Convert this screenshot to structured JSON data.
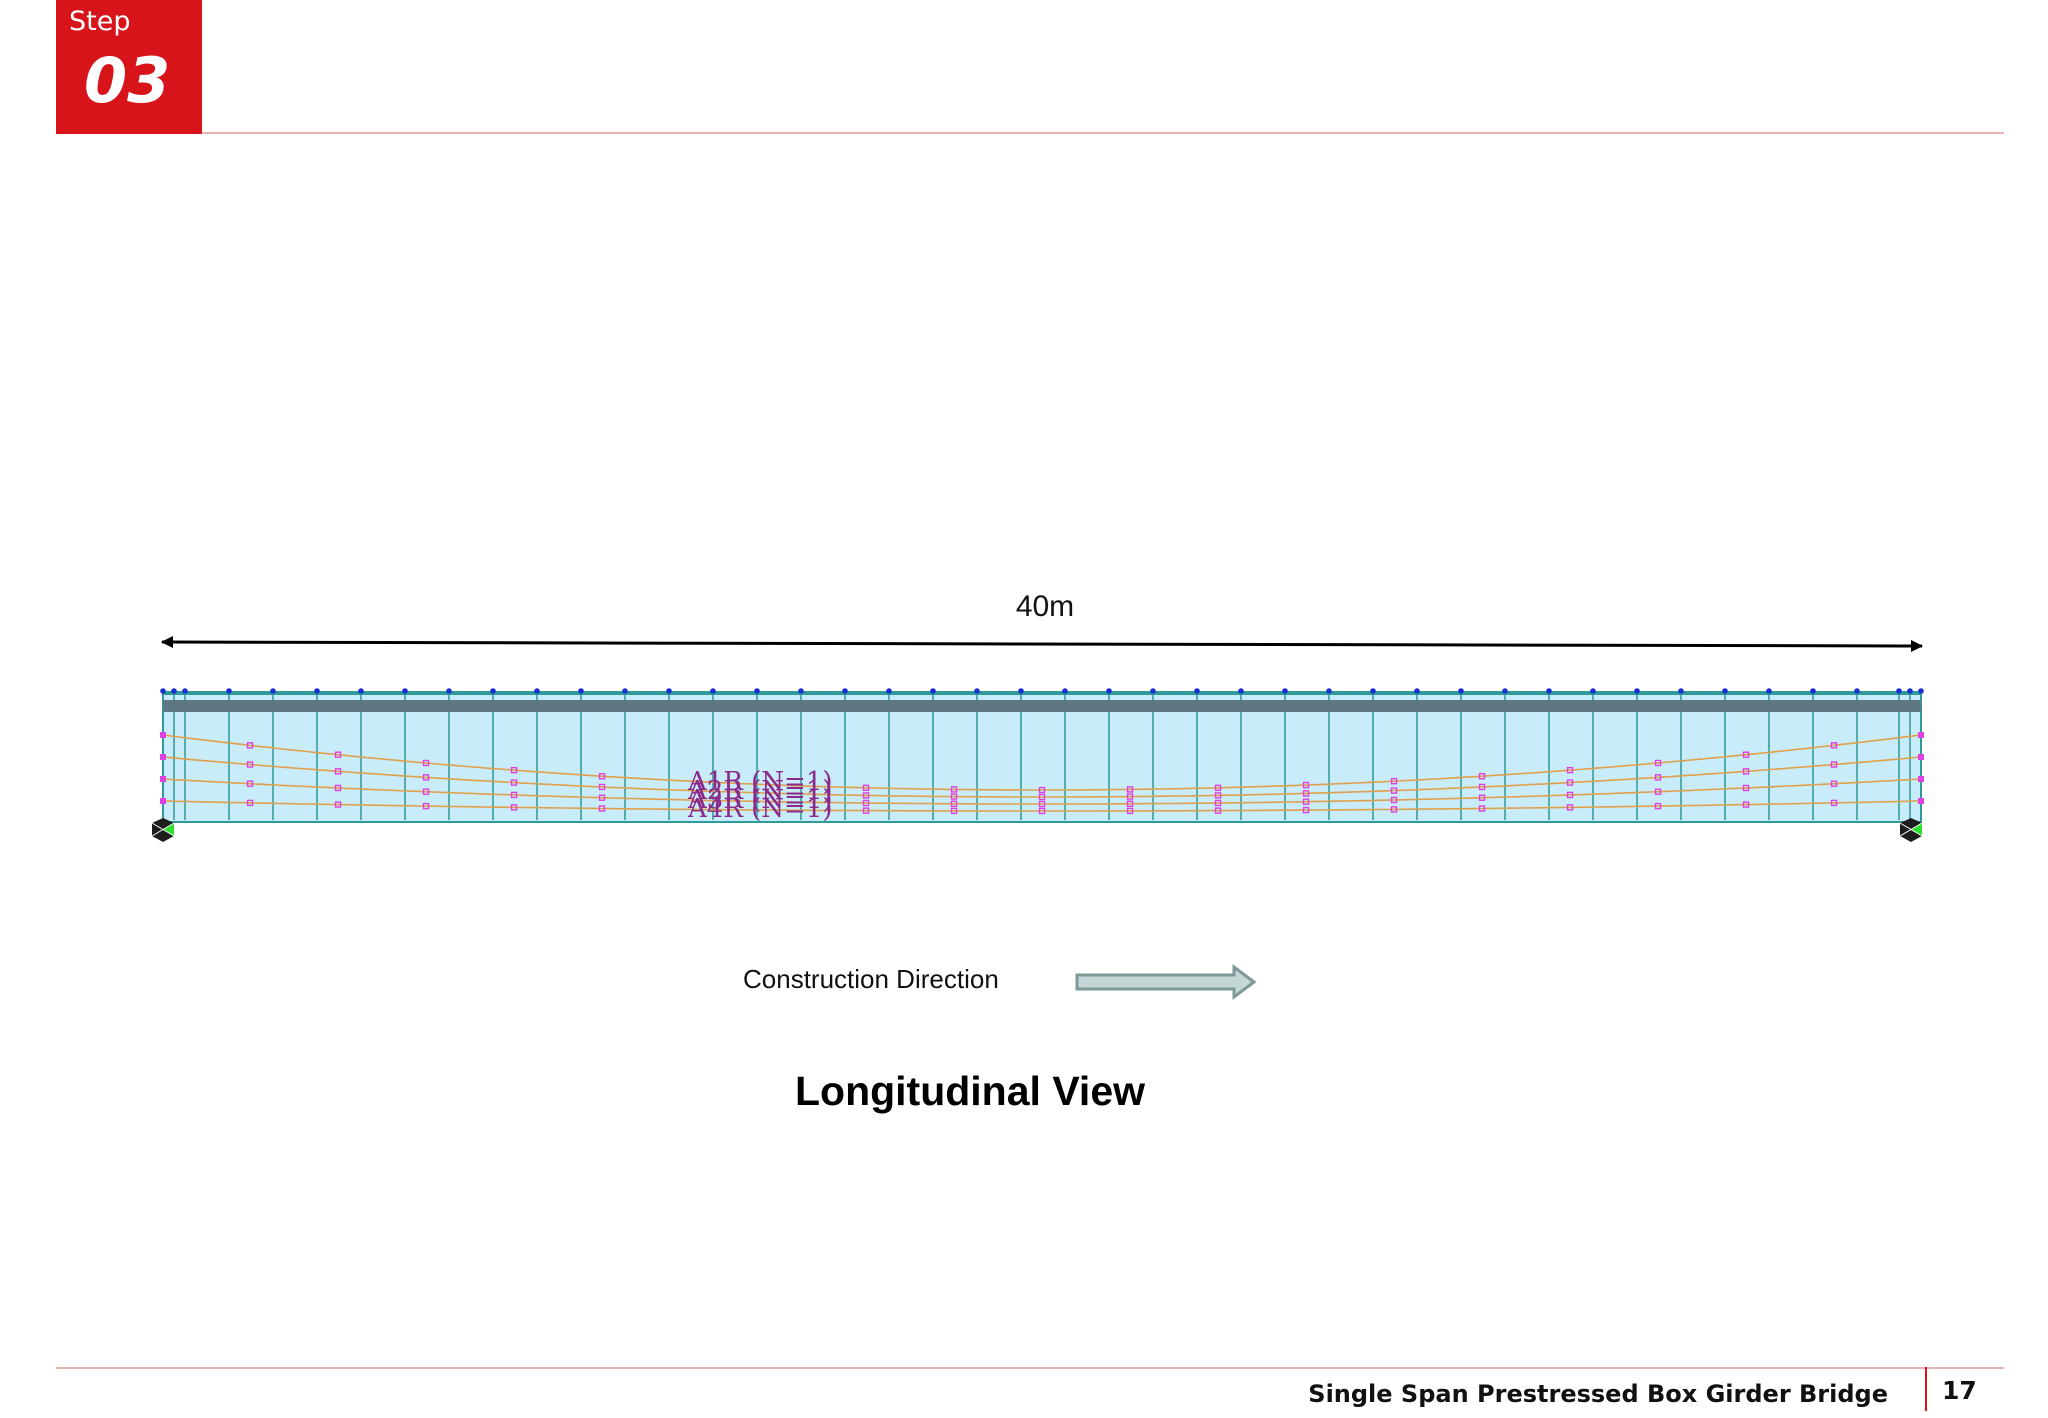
{
  "step": {
    "label": "Step",
    "number": "03"
  },
  "drawing": {
    "span_label": "40m",
    "tendon_labels": [
      "A1R (N=1)",
      "A2R (N=1)",
      "A3R (N=1)",
      "A4R (N=1)"
    ],
    "construction_label": "Construction Direction",
    "view_title": "Longitudinal View",
    "colors": {
      "girder_fill": "#c8ecfa",
      "segment_line": "#2e9a99",
      "deck": "#5f7780",
      "tendon": "#e0a04a",
      "tendon_point": "#e040e0",
      "node": "#1a2fd0",
      "support": "#2ee02e",
      "arrow": "#8fa6a6",
      "accent": "#d7141a"
    }
  },
  "footer": {
    "title": "Single Span Prestressed Box Girder Bridge",
    "page": "17"
  }
}
